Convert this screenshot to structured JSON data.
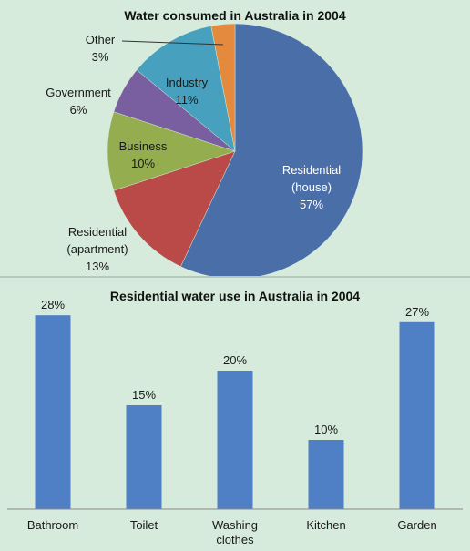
{
  "chart_data": [
    {
      "type": "pie",
      "title": "Water consumed  in Australia in 2004",
      "series": [
        {
          "name": "Residential (house)",
          "label_lines": [
            "Residential",
            "(house)"
          ],
          "value_label": "57%",
          "value": 57,
          "color": "#4a6fa8"
        },
        {
          "name": "Residential (apartment)",
          "label_lines": [
            "Residential",
            "(apartment)"
          ],
          "value_label": "13%",
          "value": 13,
          "color": "#b94a47"
        },
        {
          "name": "Business",
          "label_lines": [
            "Business"
          ],
          "value_label": "10%",
          "value": 10,
          "color": "#93ad4f"
        },
        {
          "name": "Government",
          "label_lines": [
            "Government"
          ],
          "value_label": "6%",
          "value": 6,
          "color": "#7a5fa0"
        },
        {
          "name": "Industry",
          "label_lines": [
            "Industry"
          ],
          "value_label": "11%",
          "value": 11,
          "color": "#47a0bd"
        },
        {
          "name": "Other",
          "label_lines": [
            "Other"
          ],
          "value_label": "3%",
          "value": 3,
          "color": "#e38a3e"
        }
      ]
    },
    {
      "type": "bar",
      "title": "Residential water use in Australia in 2004",
      "categories": [
        "Bathroom",
        "Toilet",
        "Washing clothes",
        "Kitchen",
        "Garden"
      ],
      "category_lines": [
        [
          "Bathroom"
        ],
        [
          "Toilet"
        ],
        [
          "Washing",
          "clothes"
        ],
        [
          "Kitchen"
        ],
        [
          "Garden"
        ]
      ],
      "values": [
        28,
        15,
        20,
        10,
        27
      ],
      "value_labels": [
        "28%",
        "15%",
        "20%",
        "10%",
        "27%"
      ],
      "ylim": [
        0,
        30
      ],
      "bar_color": "#4f7fc4",
      "grid": false
    }
  ]
}
